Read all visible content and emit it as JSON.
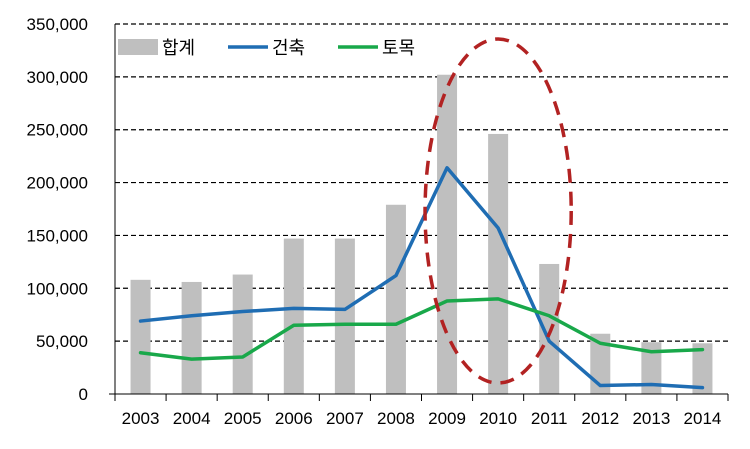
{
  "chart_data": {
    "type": "bar",
    "categories": [
      "2003",
      "2004",
      "2005",
      "2006",
      "2007",
      "2008",
      "2009",
      "2010",
      "2011",
      "2012",
      "2013",
      "2014"
    ],
    "ylim": [
      0,
      350000
    ],
    "yticks": [
      0,
      50000,
      100000,
      150000,
      200000,
      250000,
      300000,
      350000
    ],
    "ytick_labels": [
      "0",
      "50,000",
      "100,000",
      "150,000",
      "200,000",
      "250,000",
      "300,000",
      "350,000"
    ],
    "grid": true,
    "legend_position": "top-left",
    "series": [
      {
        "name": "합계",
        "type": "bar",
        "color": "#bfbfbf",
        "values": [
          108000,
          106000,
          113000,
          147000,
          147000,
          179000,
          302000,
          246000,
          123000,
          57000,
          49000,
          48000
        ]
      },
      {
        "name": "건축",
        "type": "line",
        "color": "#1f6db3",
        "values": [
          69000,
          74000,
          78000,
          81000,
          80000,
          112000,
          214000,
          157000,
          50000,
          8000,
          9000,
          6000
        ]
      },
      {
        "name": "토목",
        "type": "line",
        "color": "#19a84a",
        "values": [
          39000,
          33000,
          35000,
          65000,
          66000,
          66000,
          88000,
          90000,
          74000,
          48000,
          40000,
          42000
        ]
      }
    ],
    "annotation": {
      "shape": "dashed-ellipse",
      "color": "#b22222",
      "highlight_categories": [
        "2009",
        "2010",
        "2011"
      ]
    }
  }
}
